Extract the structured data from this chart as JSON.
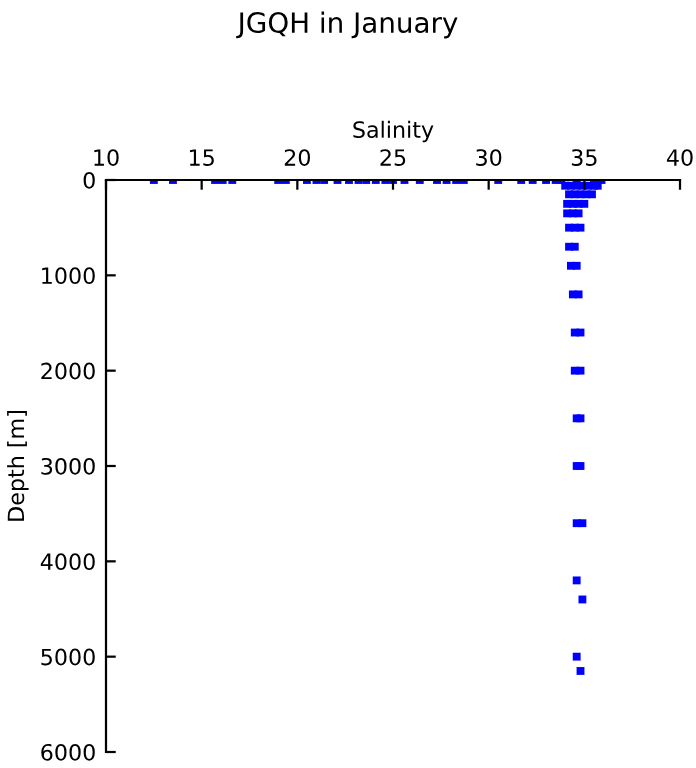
{
  "chart_data": {
    "type": "scatter",
    "title": "JGQH in January",
    "xlabel": "Salinity",
    "ylabel": "Depth [m]",
    "xlim": [
      10,
      40
    ],
    "xticks": [
      10,
      15,
      20,
      25,
      30,
      35,
      40
    ],
    "ylim": [
      6000,
      0
    ],
    "yticks": [
      0,
      1000,
      2000,
      3000,
      4000,
      5000,
      6000
    ],
    "grid": false,
    "legend": false,
    "marker": "square",
    "series": [
      {
        "color": "#0000ff",
        "x": [
          12.5,
          13.5,
          15.7,
          16.1,
          16.6,
          19.0,
          19.4,
          20.5,
          21.0,
          21.4,
          22.1,
          22.7,
          23.2,
          23.6,
          24.1,
          24.6,
          25.0,
          25.6,
          26.4,
          27.3,
          27.8,
          28.3,
          28.7,
          30.5,
          31.7,
          32.3,
          33.0,
          33.5,
          33.8,
          34.6,
          35.5,
          35.9,
          34.0,
          34.3,
          34.6,
          34.9,
          35.2,
          35.5,
          35.7,
          34.2,
          34.5,
          34.8,
          35.1,
          35.4,
          34.1,
          34.4,
          34.7,
          35.0,
          34.1,
          34.4,
          34.7,
          34.2,
          34.5,
          34.8,
          34.2,
          34.5,
          34.3,
          34.6,
          34.4,
          34.7,
          34.5,
          34.8,
          34.5,
          34.8,
          34.6,
          34.8,
          34.6,
          34.8,
          34.6,
          34.9,
          34.6,
          34.9,
          34.6,
          34.8
        ],
        "values": [
          0,
          0,
          0,
          0,
          0,
          0,
          0,
          0,
          0,
          0,
          0,
          0,
          0,
          0,
          0,
          0,
          0,
          0,
          0,
          0,
          0,
          0,
          0,
          0,
          0,
          0,
          0,
          0,
          0,
          0,
          0,
          0,
          60,
          60,
          60,
          60,
          60,
          60,
          60,
          150,
          150,
          150,
          150,
          150,
          250,
          250,
          250,
          250,
          350,
          350,
          350,
          500,
          500,
          500,
          700,
          700,
          900,
          900,
          1200,
          1200,
          1600,
          1600,
          2000,
          2000,
          2500,
          2500,
          3000,
          3000,
          3600,
          3600,
          4200,
          4400,
          5000,
          5150
        ]
      }
    ]
  }
}
